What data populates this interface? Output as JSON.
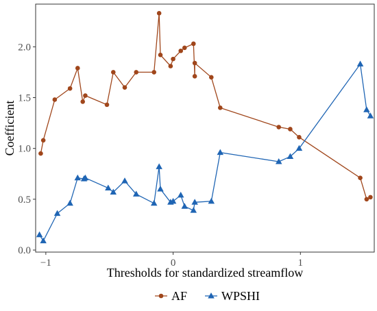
{
  "chart_data": {
    "type": "line",
    "title": "",
    "xlabel": "Thresholds for standardized streamflow",
    "ylabel": "Coefficient",
    "xlim": [
      -1.08,
      1.58
    ],
    "ylim": [
      -0.02,
      2.42
    ],
    "x_ticks": [
      -1,
      0,
      1
    ],
    "x_tick_labels": [
      "−1",
      "0",
      "1"
    ],
    "y_ticks": [
      0.0,
      0.5,
      1.0,
      1.5,
      2.0
    ],
    "y_tick_labels": [
      "0.0",
      "0.5",
      "1.0",
      "1.5",
      "2.0"
    ],
    "grid": false,
    "legend_position": "bottom",
    "series": [
      {
        "name": "AF",
        "color": "#a0461b",
        "marker": "circle",
        "x": [
          -1.04,
          -1.02,
          -0.93,
          -0.81,
          -0.75,
          -0.71,
          -0.69,
          -0.52,
          -0.47,
          -0.38,
          -0.29,
          -0.15,
          -0.11,
          -0.1,
          -0.02,
          0.0,
          0.06,
          0.09,
          0.16,
          0.17,
          0.17,
          0.3,
          0.37,
          0.83,
          0.92,
          0.99,
          1.47,
          1.52,
          1.55
        ],
        "y": [
          0.95,
          1.08,
          1.48,
          1.59,
          1.79,
          1.46,
          1.52,
          1.43,
          1.75,
          1.6,
          1.75,
          1.75,
          2.33,
          1.92,
          1.81,
          1.88,
          1.96,
          1.99,
          2.03,
          1.71,
          1.84,
          1.7,
          1.4,
          1.21,
          1.19,
          1.11,
          0.71,
          0.5,
          0.52
        ]
      },
      {
        "name": "WPSHI",
        "color": "#1f65b4",
        "marker": "triangle",
        "x": [
          -1.05,
          -1.02,
          -0.91,
          -0.81,
          -0.75,
          -0.7,
          -0.69,
          -0.51,
          -0.47,
          -0.38,
          -0.29,
          -0.15,
          -0.11,
          -0.1,
          -0.02,
          0.0,
          0.06,
          0.09,
          0.16,
          0.17,
          0.3,
          0.37,
          0.83,
          0.92,
          0.99,
          1.47,
          1.52,
          1.55
        ],
        "y": [
          0.15,
          0.09,
          0.36,
          0.46,
          0.71,
          0.7,
          0.71,
          0.61,
          0.57,
          0.68,
          0.55,
          0.46,
          0.82,
          0.6,
          0.47,
          0.48,
          0.54,
          0.43,
          0.39,
          0.47,
          0.48,
          0.96,
          0.87,
          0.92,
          1.0,
          1.83,
          1.38,
          1.32
        ]
      }
    ]
  }
}
